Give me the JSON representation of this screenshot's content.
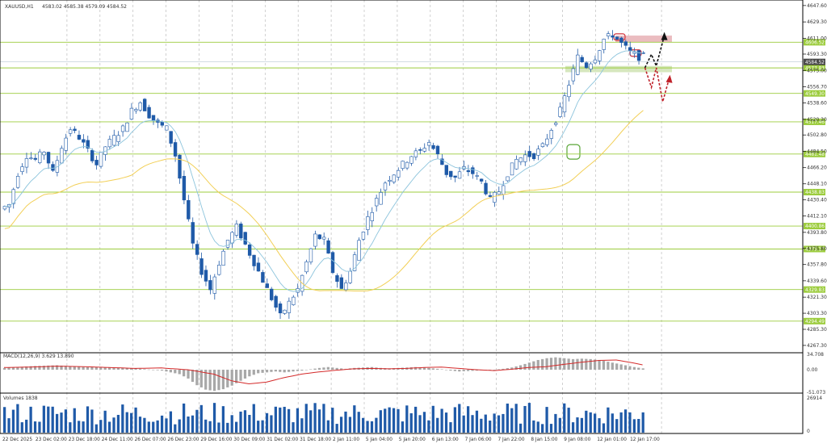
{
  "symbol_title": "XAUUSD,H1",
  "ohlc_header": "4583.02 4585.38 4579.09 4584.52",
  "colors": {
    "candle": "#1f5aa8",
    "ma_fast": "#8cc4dc",
    "ma_slow": "#f2cf56",
    "level_line": "#9ccc3d",
    "level_label_bg": "#9ccc3d",
    "price_label_bg": "#4a4a4a",
    "zone_red": "#e8b0b5",
    "zone_green": "#cfe3b3",
    "macd_bar": "#a8a8a8",
    "macd_signal": "#d42a2a",
    "volume_bar": "#1f5aa8",
    "grid": "#bdbdbd",
    "arrow_black": "#111111",
    "arrow_red": "#c0222a"
  },
  "chart_data": [
    {
      "type": "candlestick",
      "title": "XAUUSD,H1",
      "ylim": [
        4260.0,
        4652.0
      ],
      "y_ticks": [
        "4647.60",
        "4629.30",
        "4611.00",
        "4593.30",
        "4575.00",
        "4556.70",
        "4538.60",
        "4520.30",
        "4502.80",
        "4484.50",
        "4466.20",
        "4448.10",
        "4430.40",
        "4412.10",
        "4393.80",
        "4375.80",
        "4357.80",
        "4339.60",
        "4321.30",
        "4303.30",
        "4285.30",
        "4267.30"
      ],
      "x_ticks": [
        "22 Dec 2025",
        "23 Dec 02:00",
        "23 Dec 18:00",
        "24 Dec 11:00",
        "26 Dec 07:00",
        "26 Dec 23:00",
        "29 Dec 16:00",
        "30 Dec 09:00",
        "31 Dec 02:00",
        "31 Dec 18:00",
        "2 Jan 11:00",
        "5 Jan 04:00",
        "5 Jan 20:00",
        "6 Jan 13:00",
        "7 Jan 06:00",
        "7 Jan 22:00",
        "8 Jan 15:00",
        "9 Jan 08:00",
        "12 Jan 01:00",
        "12 Jan 17:00"
      ],
      "current_price": "4584.52",
      "levels": [
        "4606.52",
        "4577.83",
        "4549.30",
        "4517.46",
        "4481.48",
        "4438.83",
        "4400.86",
        "4375.17",
        "4329.83",
        "4294.49"
      ],
      "price_path": [
        [
          0,
          4420
        ],
        [
          2,
          4425
        ],
        [
          4,
          4460
        ],
        [
          6,
          4480
        ],
        [
          8,
          4475
        ],
        [
          10,
          4485
        ],
        [
          12,
          4460
        ],
        [
          14,
          4490
        ],
        [
          16,
          4510
        ],
        [
          18,
          4500
        ],
        [
          20,
          4485
        ],
        [
          22,
          4470
        ],
        [
          24,
          4490
        ],
        [
          26,
          4500
        ],
        [
          28,
          4510
        ],
        [
          30,
          4530
        ],
        [
          32,
          4540
        ],
        [
          34,
          4525
        ],
        [
          36,
          4515
        ],
        [
          38,
          4510
        ],
        [
          40,
          4480
        ],
        [
          42,
          4430
        ],
        [
          44,
          4380
        ],
        [
          46,
          4350
        ],
        [
          48,
          4330
        ],
        [
          50,
          4360
        ],
        [
          52,
          4385
        ],
        [
          54,
          4400
        ],
        [
          56,
          4380
        ],
        [
          58,
          4360
        ],
        [
          60,
          4340
        ],
        [
          62,
          4320
        ],
        [
          64,
          4300
        ],
        [
          66,
          4315
        ],
        [
          68,
          4330
        ],
        [
          70,
          4360
        ],
        [
          72,
          4390
        ],
        [
          74,
          4385
        ],
        [
          76,
          4350
        ],
        [
          78,
          4330
        ],
        [
          80,
          4350
        ],
        [
          82,
          4385
        ],
        [
          84,
          4410
        ],
        [
          86,
          4430
        ],
        [
          88,
          4450
        ],
        [
          90,
          4460
        ],
        [
          92,
          4470
        ],
        [
          94,
          4480
        ],
        [
          96,
          4485
        ],
        [
          98,
          4495
        ],
        [
          100,
          4480
        ],
        [
          102,
          4460
        ],
        [
          104,
          4455
        ],
        [
          106,
          4465
        ],
        [
          108,
          4460
        ],
        [
          110,
          4450
        ],
        [
          112,
          4430
        ],
        [
          114,
          4440
        ],
        [
          116,
          4460
        ],
        [
          118,
          4475
        ],
        [
          120,
          4480
        ],
        [
          122,
          4480
        ],
        [
          124,
          4490
        ],
        [
          126,
          4510
        ],
        [
          128,
          4530
        ],
        [
          130,
          4560
        ],
        [
          132,
          4590
        ],
        [
          134,
          4580
        ],
        [
          136,
          4590
        ],
        [
          138,
          4610
        ],
        [
          140,
          4615
        ],
        [
          142,
          4605
        ],
        [
          144,
          4595
        ],
        [
          146,
          4590
        ]
      ],
      "macd": {
        "label": "MACD(12,26,9) 3.629 13.890",
        "ylim": [
          -51.073,
          34.708
        ],
        "y_ticks": [
          "34.708",
          "0.00",
          "-51.073"
        ],
        "signal": [
          [
            0,
            5
          ],
          [
            6,
            6
          ],
          [
            12,
            8
          ],
          [
            18,
            7
          ],
          [
            24,
            5
          ],
          [
            30,
            3
          ],
          [
            36,
            4
          ],
          [
            42,
            0
          ],
          [
            48,
            -10
          ],
          [
            52,
            -25
          ],
          [
            56,
            -32
          ],
          [
            60,
            -28
          ],
          [
            64,
            -18
          ],
          [
            68,
            -10
          ],
          [
            72,
            -5
          ],
          [
            76,
            -1
          ],
          [
            80,
            2
          ],
          [
            84,
            3
          ],
          [
            88,
            2
          ],
          [
            92,
            3
          ],
          [
            96,
            5
          ],
          [
            100,
            6
          ],
          [
            104,
            3
          ],
          [
            108,
            0
          ],
          [
            112,
            -2
          ],
          [
            116,
            1
          ],
          [
            120,
            5
          ],
          [
            124,
            7
          ],
          [
            128,
            12
          ],
          [
            132,
            17
          ],
          [
            136,
            21
          ],
          [
            140,
            22
          ],
          [
            144,
            15
          ],
          [
            146,
            11
          ]
        ],
        "histogram": [
          [
            0,
            4
          ],
          [
            6,
            8
          ],
          [
            12,
            10
          ],
          [
            18,
            6
          ],
          [
            24,
            5
          ],
          [
            30,
            3
          ],
          [
            36,
            -2
          ],
          [
            40,
            -10
          ],
          [
            42,
            -20
          ],
          [
            44,
            -35
          ],
          [
            46,
            -45
          ],
          [
            48,
            -48
          ],
          [
            50,
            -44
          ],
          [
            52,
            -36
          ],
          [
            54,
            -25
          ],
          [
            56,
            -15
          ],
          [
            58,
            -8
          ],
          [
            60,
            -6
          ],
          [
            62,
            -4
          ],
          [
            64,
            -6
          ],
          [
            66,
            -4
          ],
          [
            68,
            -2
          ],
          [
            70,
            1
          ],
          [
            72,
            4
          ],
          [
            74,
            6
          ],
          [
            76,
            4
          ],
          [
            78,
            2
          ],
          [
            80,
            4
          ],
          [
            82,
            5
          ],
          [
            84,
            6
          ],
          [
            86,
            4
          ],
          [
            88,
            3
          ],
          [
            90,
            4
          ],
          [
            92,
            5
          ],
          [
            94,
            6
          ],
          [
            96,
            5
          ],
          [
            98,
            3
          ],
          [
            100,
            1
          ],
          [
            102,
            -2
          ],
          [
            104,
            -4
          ],
          [
            106,
            -3
          ],
          [
            108,
            -2
          ],
          [
            110,
            -1
          ],
          [
            112,
            0
          ],
          [
            114,
            2
          ],
          [
            116,
            5
          ],
          [
            118,
            10
          ],
          [
            120,
            16
          ],
          [
            122,
            22
          ],
          [
            124,
            26
          ],
          [
            126,
            28
          ],
          [
            128,
            26
          ],
          [
            130,
            24
          ],
          [
            132,
            25
          ],
          [
            134,
            24
          ],
          [
            136,
            22
          ],
          [
            138,
            18
          ],
          [
            140,
            14
          ],
          [
            142,
            10
          ],
          [
            144,
            6
          ],
          [
            146,
            3
          ]
        ]
      },
      "volumes": {
        "label": "Volumes 1838",
        "ylim": [
          0,
          26914
        ],
        "y_ticks": [
          "26914",
          "0"
        ],
        "last": 1838
      }
    }
  ]
}
